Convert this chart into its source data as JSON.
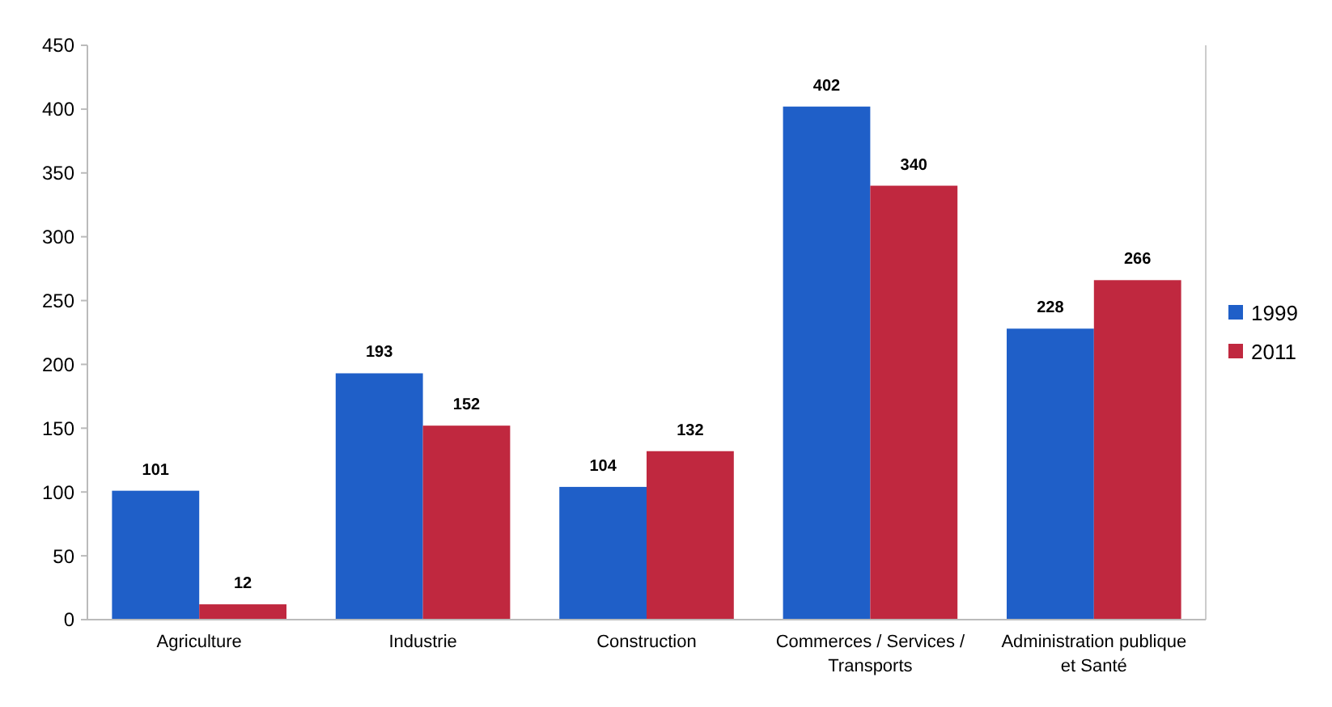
{
  "chart_data": {
    "type": "bar",
    "categories": [
      "Agriculture",
      "Industrie",
      "Construction",
      "Commerces / Services / Transports",
      "Administration publique et Santé"
    ],
    "series": [
      {
        "name": "1999",
        "color": "#1f5fc8",
        "values": [
          101,
          193,
          104,
          402,
          228
        ]
      },
      {
        "name": "2011",
        "color": "#c0283f",
        "values": [
          12,
          152,
          132,
          340,
          266
        ]
      }
    ],
    "ylim": [
      0,
      450
    ],
    "yticks": [
      0,
      50,
      100,
      150,
      200,
      250,
      300,
      350,
      400,
      450
    ],
    "data_labels": true,
    "legend": "right",
    "grid": false
  }
}
